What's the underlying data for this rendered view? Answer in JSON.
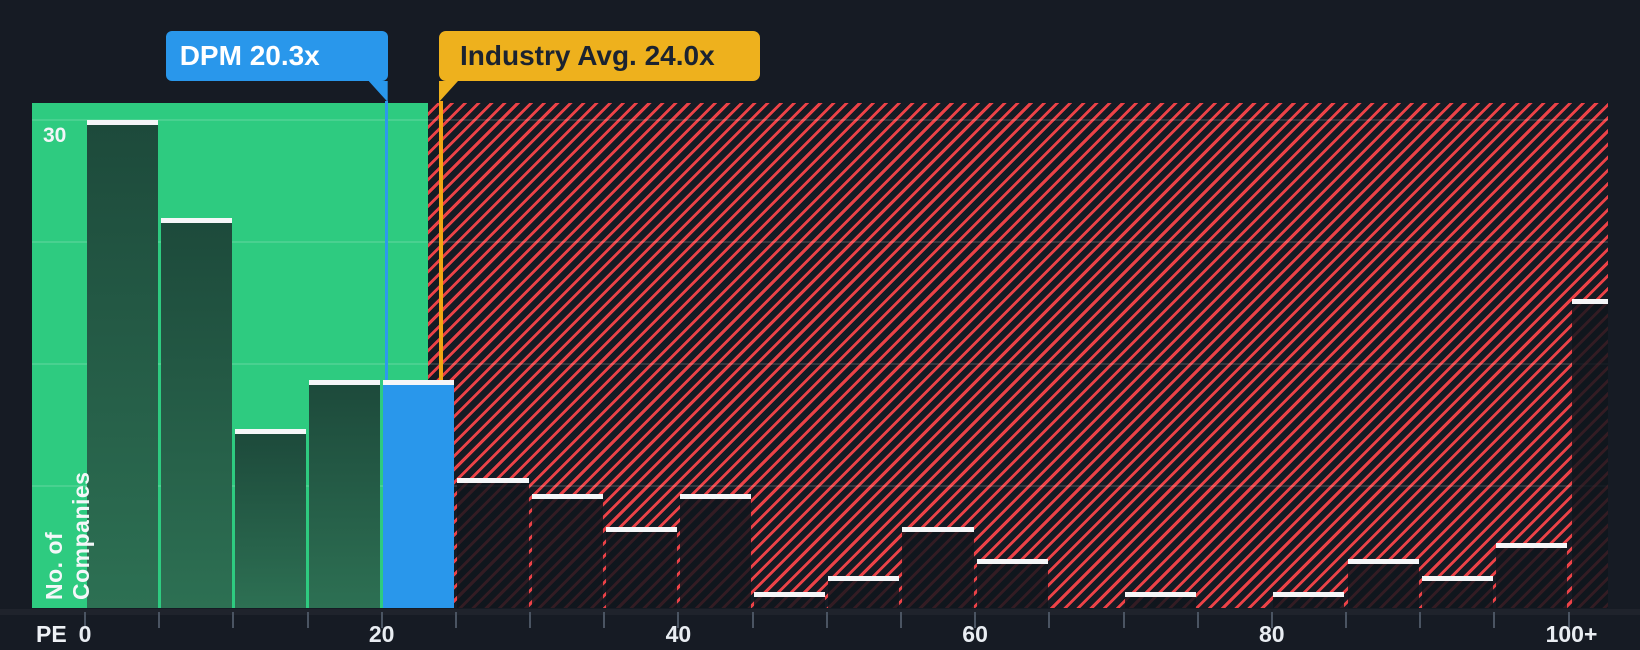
{
  "colors": {
    "background": "#161b24",
    "favorable_zone_green": "#2ecb80",
    "hatch_red": "#ec4247",
    "bar_green_top": "#1d4a3b",
    "bar_green_bottom": "#2d7053",
    "dpm_blue": "#2997eb",
    "dpm_line_blue": "#2d99ec",
    "industry_yellow": "#eeb11d",
    "industry_line_orange": "#f0a513",
    "bar_cap_white": "#f5f6f8",
    "axis_text": "#e9edf2",
    "industry_label_text": "#1b2330"
  },
  "chart_data": {
    "type": "bar",
    "subtype": "histogram",
    "xlabel": "PE",
    "ylabel": "No. of Companies",
    "y_tick_label": "30",
    "y_tick_value": 30,
    "ylim": [
      0,
      31
    ],
    "grid_interval": 7.5,
    "grid_on": true,
    "bin_width": 5,
    "x_ticks_labeled": [
      {
        "value": 0,
        "label": "0"
      },
      {
        "value": 20,
        "label": "20"
      },
      {
        "value": 40,
        "label": "40"
      },
      {
        "value": 60,
        "label": "60"
      },
      {
        "value": 80,
        "label": "80"
      },
      {
        "value": 100,
        "label": "100+"
      }
    ],
    "x_minor_tick_step": 5,
    "bins": [
      {
        "range": "0-5",
        "value": 30,
        "style": "green"
      },
      {
        "range": "5-10",
        "value": 24,
        "style": "green"
      },
      {
        "range": "10-15",
        "value": 11,
        "style": "green"
      },
      {
        "range": "15-20",
        "value": 14,
        "style": "green"
      },
      {
        "range": "20-25",
        "value": 14,
        "style": "blue",
        "highlight": "dpm"
      },
      {
        "range": "25-30",
        "value": 8,
        "style": "dark"
      },
      {
        "range": "30-35",
        "value": 7,
        "style": "dark"
      },
      {
        "range": "35-40",
        "value": 5,
        "style": "dark"
      },
      {
        "range": "40-45",
        "value": 7,
        "style": "dark"
      },
      {
        "range": "45-50",
        "value": 1,
        "style": "dark"
      },
      {
        "range": "50-55",
        "value": 2,
        "style": "dark"
      },
      {
        "range": "55-60",
        "value": 5,
        "style": "dark"
      },
      {
        "range": "60-65",
        "value": 3,
        "style": "dark"
      },
      {
        "range": "65-70",
        "value": 0,
        "style": "dark"
      },
      {
        "range": "70-75",
        "value": 1,
        "style": "dark"
      },
      {
        "range": "75-80",
        "value": 0,
        "style": "dark"
      },
      {
        "range": "80-85",
        "value": 1,
        "style": "dark"
      },
      {
        "range": "85-90",
        "value": 3,
        "style": "dark"
      },
      {
        "range": "90-95",
        "value": 2,
        "style": "dark"
      },
      {
        "range": "95-100",
        "value": 4,
        "style": "dark"
      },
      {
        "range": "100+",
        "value": 19,
        "style": "dark",
        "open_ended": true
      }
    ],
    "markers": [
      {
        "id": "dpm",
        "label": "DPM 20.3x",
        "value": 20.3
      },
      {
        "id": "industry",
        "label": "Industry Avg. 24.0x",
        "value": 24.0
      }
    ],
    "zones": {
      "favorable_start_pe": 0,
      "favorable_end_pe": 23.1,
      "legend_position": "top-left-of-plot"
    }
  }
}
